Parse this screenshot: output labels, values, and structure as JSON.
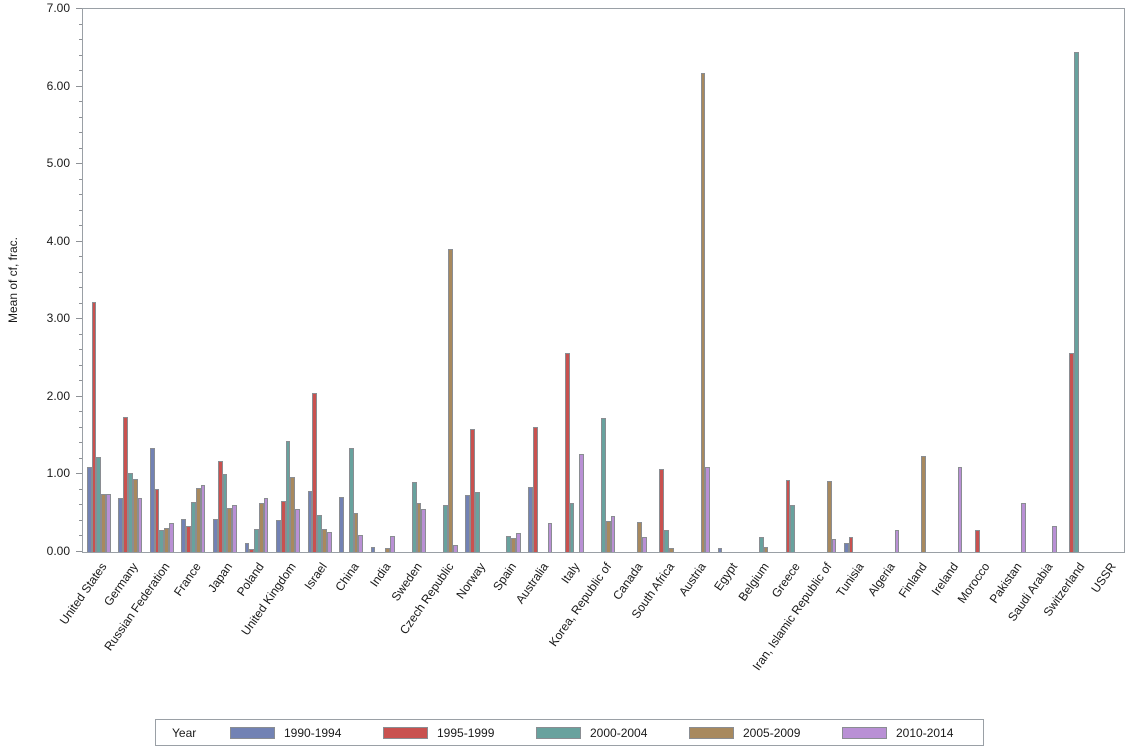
{
  "chart_data": {
    "type": "bar",
    "title": "",
    "xlabel": "",
    "ylabel": "Mean of cf, frac.",
    "ylim": [
      0,
      7
    ],
    "ytick_step": 1.0,
    "ytick_labels": [
      "0.00",
      "1.00",
      "2.00",
      "3.00",
      "4.00",
      "5.00",
      "6.00",
      "7.00"
    ],
    "grid": false,
    "legend_title": "Year",
    "legend_position": "bottom",
    "axis_color": "#9aa0a6",
    "bar_border_color": "#8a8d92",
    "categories": [
      "United States",
      "Germany",
      "Russian Federation",
      "France",
      "Japan",
      "Poland",
      "United Kingdom",
      "Israel",
      "China",
      "India",
      "Sweden",
      "Czech Republic",
      "Norway",
      "Spain",
      "Australia",
      "Italy",
      "Korea, Republic of",
      "Canada",
      "South Africa",
      "Austria",
      "Egypt",
      "Belgium",
      "Greece",
      "Iran, Islamic Republic of",
      "Tunisia",
      "Algeria",
      "Finland",
      "Ireland",
      "Morocco",
      "Pakistan",
      "Saudi Arabia",
      "Switzerland",
      "USSR"
    ],
    "series": [
      {
        "name": "1990-1994",
        "color": "#7282b4",
        "values": [
          1.1,
          0.7,
          1.34,
          0.43,
          0.42,
          0.11,
          0.41,
          0.79,
          0.71,
          0.06,
          null,
          null,
          0.73,
          null,
          0.84,
          null,
          null,
          null,
          null,
          null,
          0.05,
          null,
          null,
          null,
          0.11,
          null,
          null,
          null,
          null,
          null,
          null,
          null,
          null
        ]
      },
      {
        "name": "1995-1999",
        "color": "#c9514f",
        "values": [
          3.22,
          1.74,
          0.81,
          0.34,
          1.17,
          0.04,
          0.66,
          2.05,
          null,
          null,
          null,
          null,
          1.58,
          null,
          1.61,
          2.56,
          null,
          null,
          1.07,
          null,
          null,
          null,
          0.93,
          null,
          0.2,
          null,
          null,
          null,
          0.29,
          null,
          null,
          2.56,
          null
        ]
      },
      {
        "name": "2000-2004",
        "color": "#68a29e",
        "values": [
          1.22,
          1.02,
          0.29,
          0.64,
          1.0,
          0.3,
          1.43,
          0.48,
          1.34,
          null,
          0.9,
          0.61,
          0.77,
          0.21,
          null,
          0.63,
          1.73,
          null,
          0.28,
          null,
          null,
          0.2,
          0.61,
          null,
          null,
          null,
          null,
          null,
          null,
          null,
          null,
          6.44,
          null
        ]
      },
      {
        "name": "2005-2009",
        "color": "#a8895e",
        "values": [
          0.75,
          0.94,
          0.31,
          0.83,
          0.57,
          0.63,
          0.97,
          0.3,
          0.5,
          0.05,
          0.63,
          3.91,
          null,
          0.18,
          null,
          null,
          0.4,
          0.39,
          0.05,
          6.17,
          null,
          0.06,
          null,
          0.92,
          null,
          null,
          1.24,
          null,
          null,
          null,
          null,
          null,
          null
        ]
      },
      {
        "name": "2010-2014",
        "color": "#b990d5",
        "values": [
          0.75,
          0.69,
          0.38,
          0.87,
          0.61,
          0.7,
          0.56,
          0.26,
          0.22,
          0.21,
          0.56,
          0.09,
          null,
          0.24,
          0.38,
          1.26,
          0.47,
          0.19,
          null,
          1.1,
          null,
          null,
          null,
          0.17,
          null,
          0.29,
          null,
          1.1,
          null,
          0.63,
          0.33,
          null,
          null
        ]
      }
    ]
  }
}
